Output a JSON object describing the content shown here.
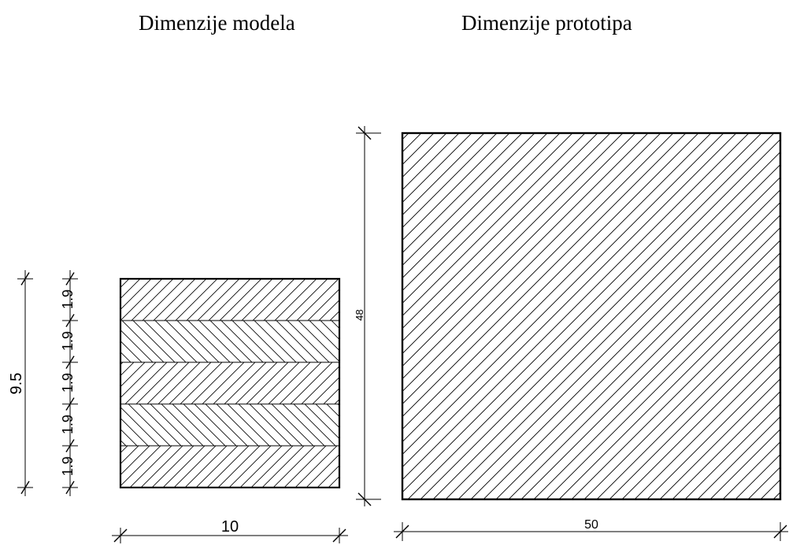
{
  "titles": {
    "model": "Dimenzije modela",
    "prototype": "Dimenzije prototipa"
  },
  "model": {
    "width_label": "10",
    "height_label": "9.5",
    "layer_labels": [
      "1.9",
      "1.9",
      "1.9",
      "1.9",
      "1.9"
    ]
  },
  "prototype": {
    "width_label": "50",
    "height_label": "48"
  }
}
